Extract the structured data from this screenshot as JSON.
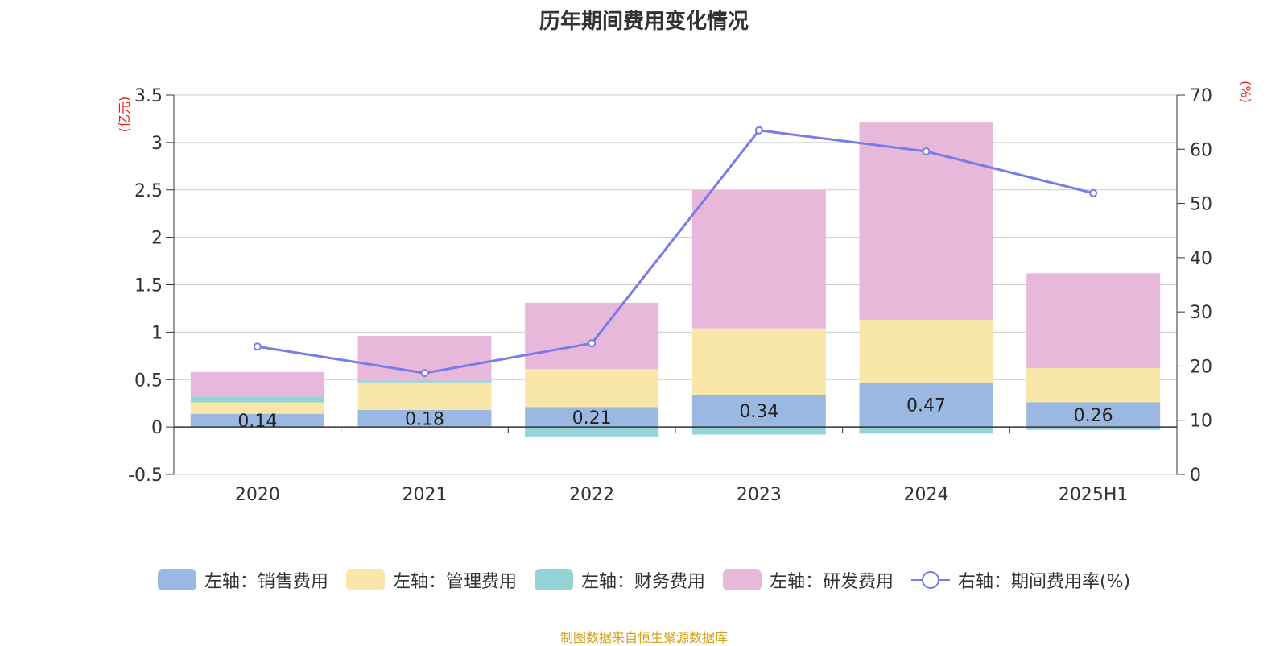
{
  "title": "历年期间费用变化情况",
  "source": "制图数据来自恒生聚源数据库",
  "chart_data": {
    "type": "bar",
    "stacked": true,
    "categories": [
      "2020",
      "2021",
      "2022",
      "2023",
      "2024",
      "2025H1"
    ],
    "y_left": {
      "unit": "(亿元)",
      "ylim": [
        -0.5,
        3.5
      ],
      "ticks": [
        -0.5,
        0,
        0.5,
        1,
        1.5,
        2,
        2.5,
        3,
        3.5
      ],
      "tick_labels": [
        "-0.5",
        "0",
        "0.5",
        "1",
        "1.5",
        "2",
        "2.5",
        "3",
        "3.5"
      ]
    },
    "y_right": {
      "unit": "(%)",
      "ylim": [
        0,
        70
      ],
      "ticks": [
        0,
        10,
        20,
        30,
        40,
        50,
        60,
        70
      ],
      "tick_labels": [
        "0",
        "10",
        "20",
        "30",
        "40",
        "50",
        "60",
        "70"
      ]
    },
    "grid": true,
    "series": [
      {
        "name": "左轴：销售费用",
        "axis": "left",
        "color": "#9bb8e2",
        "values": [
          0.14,
          0.18,
          0.21,
          0.34,
          0.47,
          0.26
        ],
        "labels": [
          "0.14",
          "0.18",
          "0.21",
          "0.34",
          "0.47",
          "0.26"
        ]
      },
      {
        "name": "左轴：管理费用",
        "axis": "left",
        "color": "#f8e7a8",
        "values": [
          0.12,
          0.29,
          0.4,
          0.7,
          0.66,
          0.36
        ]
      },
      {
        "name": "左轴：财务费用",
        "axis": "left",
        "color": "#95d4d6",
        "values": [
          0.06,
          0.02,
          -0.1,
          -0.08,
          -0.07,
          -0.03
        ]
      },
      {
        "name": "左轴：研发费用",
        "axis": "left",
        "color": "#e8b8da",
        "values": [
          0.26,
          0.47,
          0.7,
          1.46,
          2.08,
          1.0
        ]
      },
      {
        "name": "右轴：期间费用率(%)",
        "axis": "right",
        "type": "line",
        "color": "#7a7ae8",
        "values": [
          23.6,
          18.7,
          24.2,
          63.5,
          59.6,
          51.9
        ]
      }
    ],
    "legend_position": "bottom"
  }
}
